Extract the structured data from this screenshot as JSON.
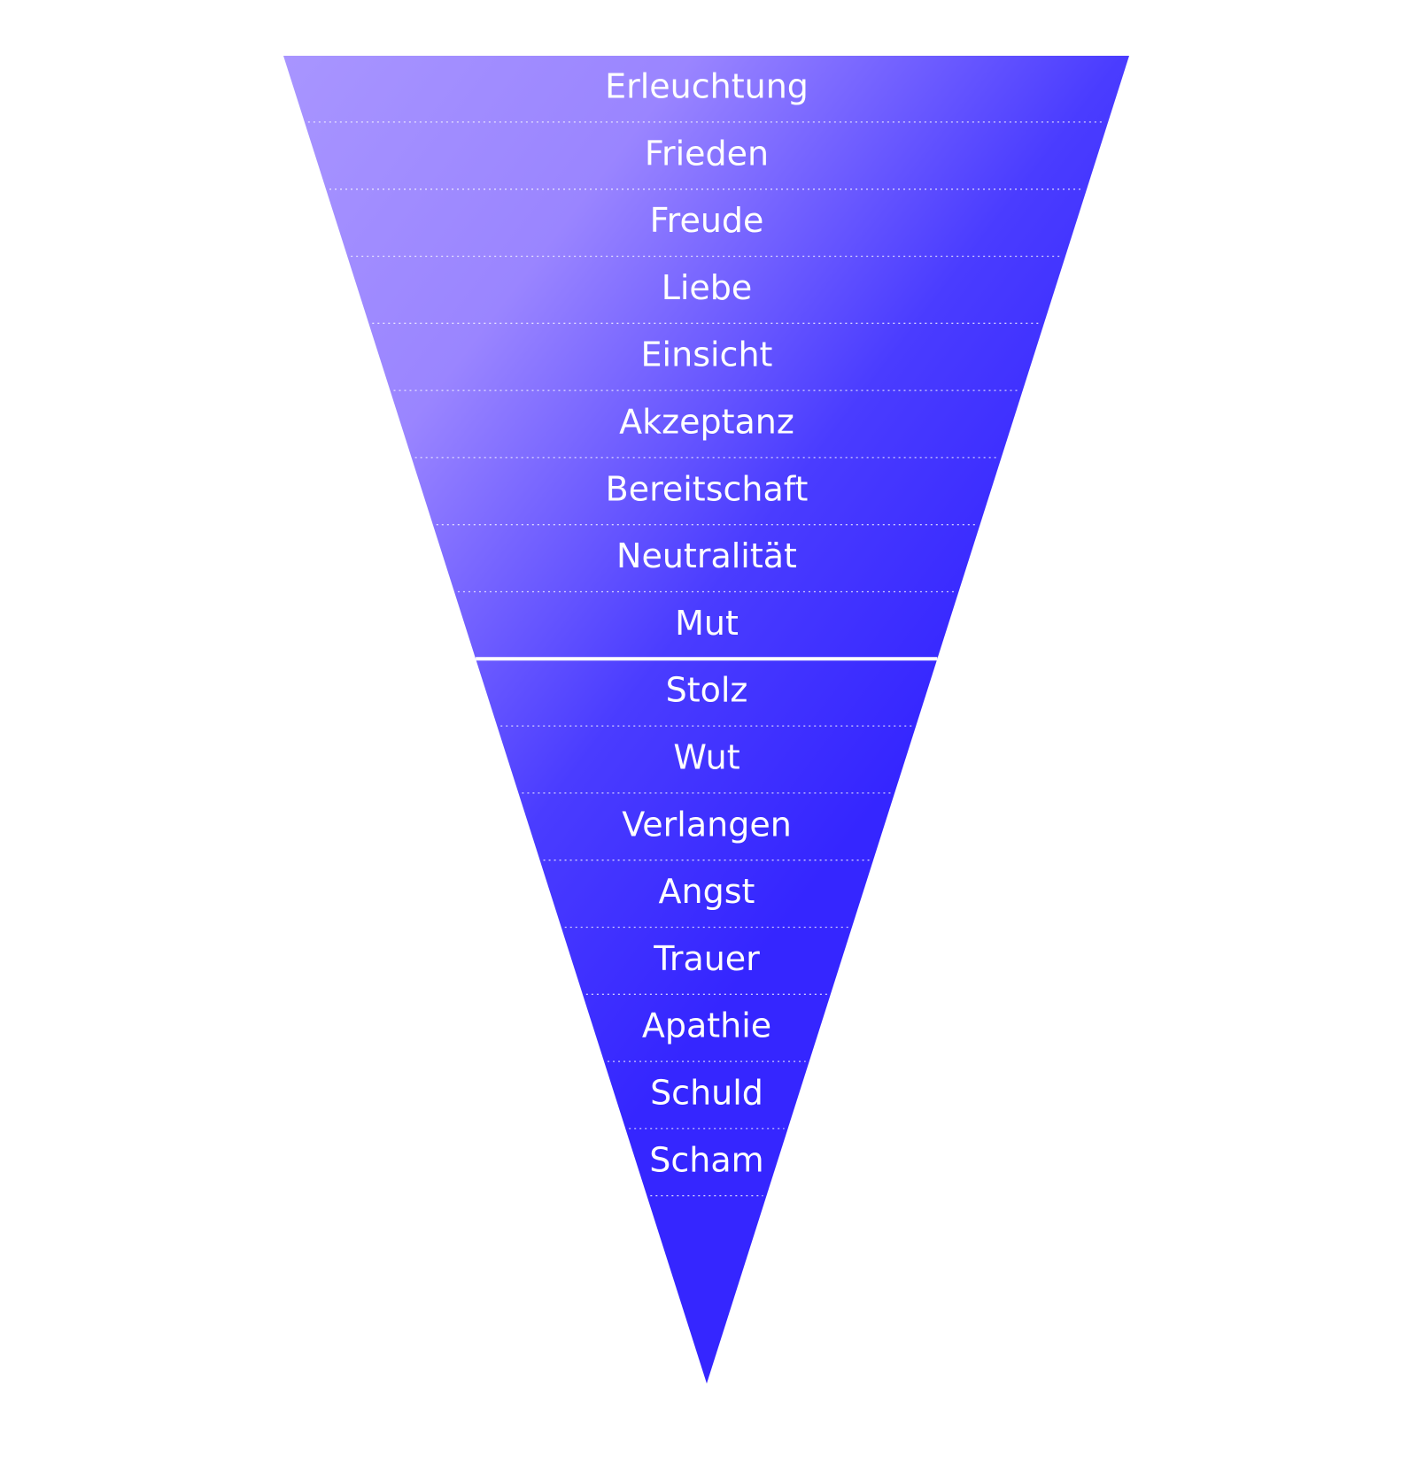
{
  "upper_levels": [
    "Erleuchtung",
    "Frieden",
    "Freude",
    "Liebe",
    "Einsicht",
    "Akzeptanz",
    "Bereitschaft",
    "Neutralität",
    "Mut"
  ],
  "lower_levels": [
    "Stolz",
    "Wut",
    "Verlangen",
    "Angst",
    "Trauer",
    "Apathie",
    "Schuld",
    "Scham"
  ]
}
